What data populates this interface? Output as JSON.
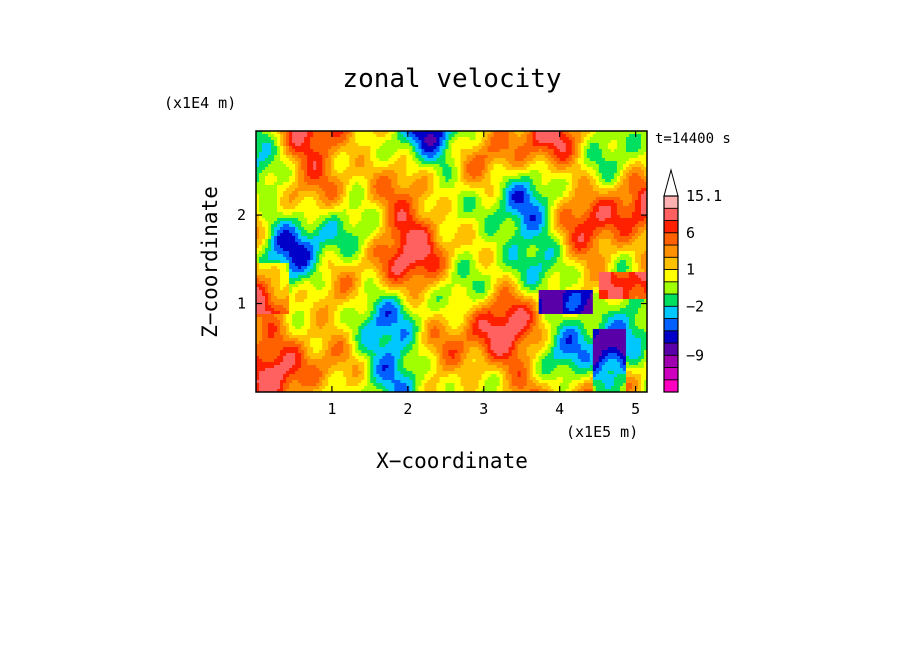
{
  "chart_data": {
    "type": "heatmap",
    "title": "zonal velocity",
    "xlabel": "X−coordinate",
    "ylabel": "Z−coordinate",
    "x_unit": "(x1E5 m)",
    "y_unit": "(x1E4 m)",
    "time_label": "t=14400 s",
    "xlim": [
      0,
      5.15
    ],
    "ylim": [
      0,
      2.95
    ],
    "x_ticks": [
      {
        "value": 1,
        "label": "1"
      },
      {
        "value": 2,
        "label": "2"
      },
      {
        "value": 3,
        "label": "3"
      },
      {
        "value": 4,
        "label": "4"
      },
      {
        "value": 5,
        "label": "5"
      }
    ],
    "y_ticks": [
      {
        "value": 1,
        "label": "1"
      },
      {
        "value": 2,
        "label": "2"
      }
    ],
    "colorbar": {
      "levels": [
        {
          "color": "#ff00c0"
        },
        {
          "color": "#d000c0"
        },
        {
          "color": "#a000b0"
        },
        {
          "color": "#5a00a8"
        },
        {
          "color": "#0000c8"
        },
        {
          "color": "#0060ff"
        },
        {
          "color": "#00c8ff"
        },
        {
          "color": "#00e060"
        },
        {
          "color": "#a0ff00"
        },
        {
          "color": "#ffff00"
        },
        {
          "color": "#ffc000"
        },
        {
          "color": "#ff9000"
        },
        {
          "color": "#ff6000"
        },
        {
          "color": "#ff2000"
        },
        {
          "color": "#ff6060"
        },
        {
          "color": "#ffb0b0"
        }
      ],
      "tick_labels": [
        {
          "label": "15.1",
          "level_index": 15
        },
        {
          "label": "6",
          "level_index": 12
        },
        {
          "label": "1",
          "level_index": 9
        },
        {
          "label": "−2",
          "level_index": 6
        },
        {
          "label": "−9",
          "level_index": 2
        }
      ]
    }
  }
}
